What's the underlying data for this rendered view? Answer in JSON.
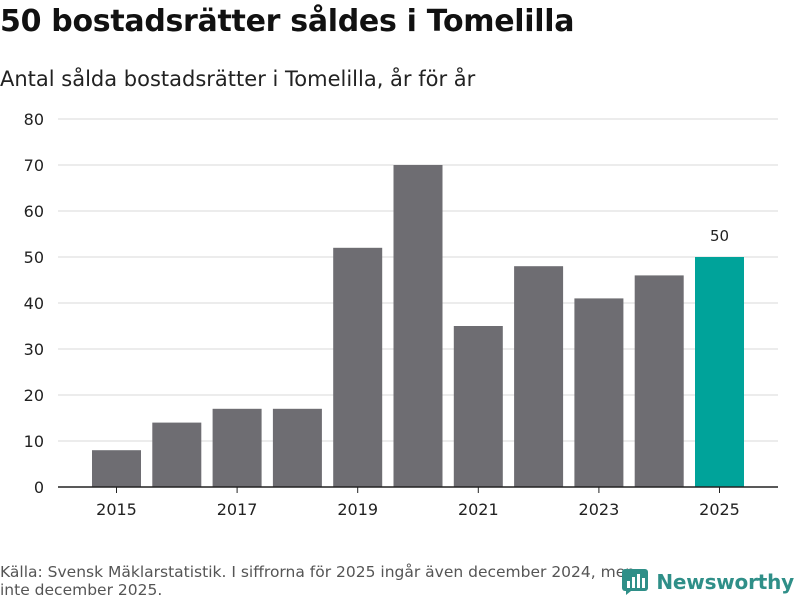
{
  "header": {
    "title": "50 bostadsrätter såldes i Tomelilla",
    "subtitle": "Antal sålda bostadsrätter i Tomelilla, år för år"
  },
  "footer": {
    "source": "Källa: Svensk Mäklarstatistik. I siffrorna för 2025 ingår även december 2024, men inte december 2025.",
    "brand": "Newsworthy"
  },
  "colors": {
    "bar": "#6e6d72",
    "highlight": "#00a39a",
    "grid": "#d9d9d9",
    "axis": "#222222",
    "brand": "#2f8f88"
  },
  "chart_data": {
    "type": "bar",
    "title": "50 bostadsrätter såldes i Tomelilla",
    "subtitle": "Antal sålda bostadsrätter i Tomelilla, år för år",
    "xlabel": "",
    "ylabel": "",
    "categories": [
      "2015",
      "2016",
      "2017",
      "2018",
      "2019",
      "2020",
      "2021",
      "2022",
      "2023",
      "2024",
      "2025"
    ],
    "values": [
      8,
      14,
      17,
      17,
      52,
      70,
      35,
      48,
      41,
      46,
      50
    ],
    "highlight_index": 10,
    "data_labels": [
      {
        "index": 10,
        "text": "50"
      }
    ],
    "x_tick_labels": [
      "2015",
      "2017",
      "2019",
      "2021",
      "2023",
      "2025"
    ],
    "y_ticks": [
      0,
      10,
      20,
      30,
      40,
      50,
      60,
      70,
      80
    ],
    "ylim": [
      0,
      80
    ],
    "grid": true
  }
}
